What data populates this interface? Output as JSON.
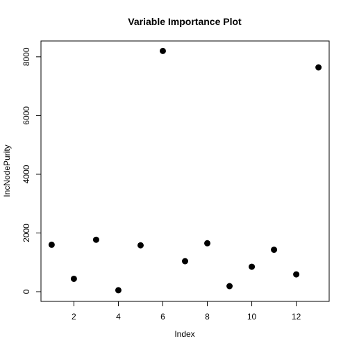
{
  "chart_data": {
    "type": "scatter",
    "title": "Variable Importance Plot",
    "xlabel": "Index",
    "ylabel": "IncNodePurity",
    "xlim": [
      0.52,
      13.48
    ],
    "ylim": [
      -330,
      8540
    ],
    "x_ticks": [
      2,
      4,
      6,
      8,
      10,
      12
    ],
    "y_ticks": [
      0,
      2000,
      4000,
      6000,
      8000
    ],
    "grid": false,
    "legend": "none",
    "point_color": "#000000",
    "points": [
      {
        "x": 1,
        "y": 1600
      },
      {
        "x": 2,
        "y": 440
      },
      {
        "x": 3,
        "y": 1770
      },
      {
        "x": 4,
        "y": 50
      },
      {
        "x": 5,
        "y": 1580
      },
      {
        "x": 6,
        "y": 8200
      },
      {
        "x": 7,
        "y": 1040
      },
      {
        "x": 8,
        "y": 1650
      },
      {
        "x": 9,
        "y": 190
      },
      {
        "x": 10,
        "y": 850
      },
      {
        "x": 11,
        "y": 1430
      },
      {
        "x": 12,
        "y": 590
      },
      {
        "x": 13,
        "y": 7640
      }
    ]
  }
}
